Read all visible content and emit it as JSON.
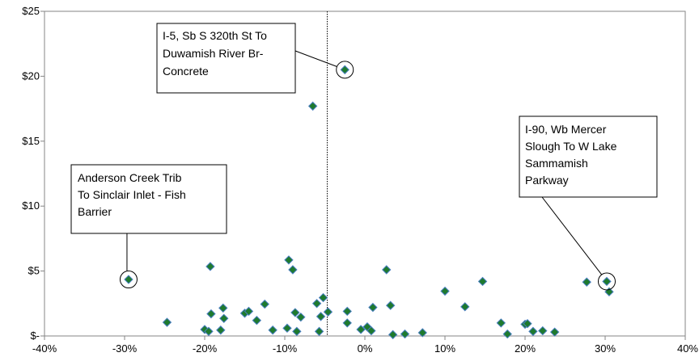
{
  "chart_data": {
    "type": "scatter",
    "title": "",
    "xlabel": "",
    "ylabel": "",
    "xlim": [
      -0.4,
      0.4
    ],
    "ylim": [
      0,
      25
    ],
    "x_ticks": [
      -0.4,
      -0.3,
      -0.2,
      -0.1,
      0.0,
      0.1,
      0.2,
      0.3,
      0.4
    ],
    "x_tick_labels": [
      "-40%",
      "-30%",
      "-20%",
      "-10%",
      "0%",
      "10%",
      "20%",
      "30%",
      "40%"
    ],
    "y_ticks": [
      0,
      5,
      10,
      15,
      20,
      25
    ],
    "y_tick_labels": [
      "$-",
      "$5",
      "$10",
      "$15",
      "$20",
      "$25"
    ],
    "grid": false,
    "reference_line_x": -0.047,
    "marker": {
      "shape": "diamond",
      "fill": "#1e7a2e",
      "stroke": "#4a7fc1"
    },
    "points": [
      {
        "x": -0.295,
        "y": 4.35
      },
      {
        "x": -0.247,
        "y": 1.05
      },
      {
        "x": -0.2,
        "y": 0.5
      },
      {
        "x": -0.195,
        "y": 0.35
      },
      {
        "x": -0.193,
        "y": 5.35
      },
      {
        "x": -0.192,
        "y": 1.7
      },
      {
        "x": -0.18,
        "y": 0.45
      },
      {
        "x": -0.177,
        "y": 2.15
      },
      {
        "x": -0.176,
        "y": 1.35
      },
      {
        "x": -0.15,
        "y": 1.75
      },
      {
        "x": -0.145,
        "y": 1.9
      },
      {
        "x": -0.135,
        "y": 1.2
      },
      {
        "x": -0.125,
        "y": 2.45
      },
      {
        "x": -0.115,
        "y": 0.45
      },
      {
        "x": -0.097,
        "y": 0.6
      },
      {
        "x": -0.095,
        "y": 5.85
      },
      {
        "x": -0.09,
        "y": 5.1
      },
      {
        "x": -0.087,
        "y": 1.8
      },
      {
        "x": -0.085,
        "y": 0.35
      },
      {
        "x": -0.08,
        "y": 1.45
      },
      {
        "x": -0.065,
        "y": 17.7
      },
      {
        "x": -0.06,
        "y": 2.5
      },
      {
        "x": -0.057,
        "y": 0.35
      },
      {
        "x": -0.055,
        "y": 1.5
      },
      {
        "x": -0.052,
        "y": 2.95
      },
      {
        "x": -0.046,
        "y": 1.85
      },
      {
        "x": -0.025,
        "y": 20.5
      },
      {
        "x": -0.022,
        "y": 1.9
      },
      {
        "x": -0.022,
        "y": 1.0
      },
      {
        "x": -0.005,
        "y": 0.5
      },
      {
        "x": 0.003,
        "y": 0.7
      },
      {
        "x": 0.008,
        "y": 0.4
      },
      {
        "x": 0.01,
        "y": 2.2
      },
      {
        "x": 0.027,
        "y": 5.1
      },
      {
        "x": 0.032,
        "y": 2.35
      },
      {
        "x": 0.035,
        "y": 0.1
      },
      {
        "x": 0.05,
        "y": 0.15
      },
      {
        "x": 0.072,
        "y": 0.25
      },
      {
        "x": 0.1,
        "y": 3.45
      },
      {
        "x": 0.125,
        "y": 2.25
      },
      {
        "x": 0.147,
        "y": 4.2
      },
      {
        "x": 0.17,
        "y": 1.0
      },
      {
        "x": 0.178,
        "y": 0.15
      },
      {
        "x": 0.2,
        "y": 0.9
      },
      {
        "x": 0.203,
        "y": 0.95
      },
      {
        "x": 0.21,
        "y": 0.35
      },
      {
        "x": 0.222,
        "y": 0.4
      },
      {
        "x": 0.237,
        "y": 0.3
      },
      {
        "x": 0.277,
        "y": 4.15
      },
      {
        "x": 0.302,
        "y": 4.2
      },
      {
        "x": 0.305,
        "y": 3.4
      }
    ],
    "annotations": [
      {
        "lines": [
          "I-5, Sb S 320th St To",
          "Duwamish River Br-",
          "Concrete"
        ],
        "x": -0.025,
        "y": 20.5
      },
      {
        "lines": [
          "Anderson Creek Trib",
          "To Sinclair Inlet - Fish",
          "Barrier"
        ],
        "x": -0.295,
        "y": 4.35
      },
      {
        "lines": [
          "I-90, Wb Mercer",
          "Slough To W Lake",
          "Sammamish",
          "Parkway"
        ],
        "x": 0.302,
        "y": 4.2
      }
    ]
  }
}
